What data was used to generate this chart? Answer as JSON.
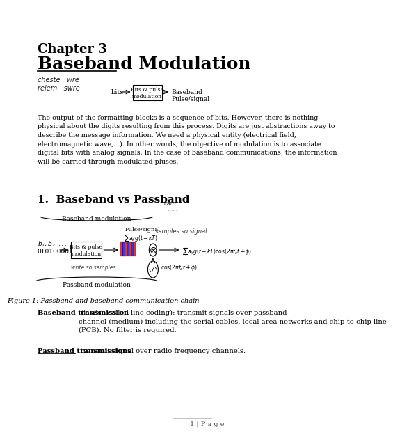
{
  "title_chapter": "Chapter 3",
  "title_main": "Baseband Modulation",
  "handwritten_line1": "cheste   wre",
  "handwritten_line2": "relem   swre",
  "bits_label": "bits",
  "box_label": "Bits & pulse\nmodulation",
  "baseband_label": "Baseband\nPulse/signal",
  "para_text": "The output of the formatting blocks is a sequence of bits. However, there is nothing\nphysical about the digits resulting from this process. Digits are just abstractions away to\ndescribe the message information. We need a physical entity (electrical field,\nelectromagnetic wave,...). In other words, the objective of modulation is to associate\ndigital bits with analog signals. In the case of baseband communications, the information\nwill be carried through modulated pluses.",
  "section_title": "1.  Baseband vs Passband",
  "fig_caption": "Figure 1: Passband and baseband communication chain",
  "baseband_transmission_bold": "Baseband transmission",
  "baseband_transmission_text": " (is also called line coding): transmit signals over passband\nchannel (medium) including the serial cables, local area networks and chip-to-chip line\n(PCB). No filter is required.",
  "passband_bold": "Passband transmissions",
  "passband_text": ": transmit signal over radio frequency channels.",
  "page_footer": "1 | P a g e",
  "bg_color": "#ffffff",
  "text_color": "#000000",
  "box_bg": "#ffffff",
  "box_border": "#000000"
}
